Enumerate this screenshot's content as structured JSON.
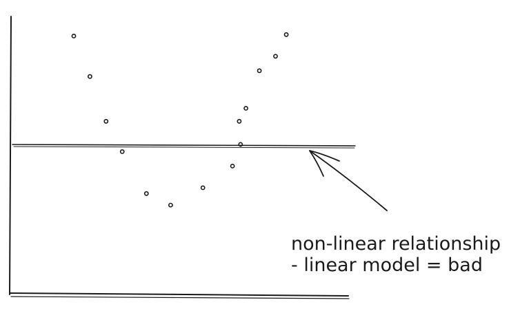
{
  "chart_data": {
    "type": "scatter",
    "title": "",
    "xlabel": "",
    "ylabel": "",
    "grid": false,
    "xlim": [
      0,
      10
    ],
    "ylim": [
      -4,
      4.5
    ],
    "series": [
      {
        "points": [
          {
            "x": 1.0,
            "y": 3.8
          },
          {
            "x": 1.6,
            "y": 2.4
          },
          {
            "x": 2.2,
            "y": 0.85
          },
          {
            "x": 2.8,
            "y": -0.2
          },
          {
            "x": 3.7,
            "y": -1.65
          },
          {
            "x": 4.6,
            "y": -2.05
          },
          {
            "x": 5.8,
            "y": -1.45
          },
          {
            "x": 6.9,
            "y": -0.7
          },
          {
            "x": 7.15,
            "y": 0.85
          },
          {
            "x": 7.4,
            "y": 1.3
          },
          {
            "x": 7.9,
            "y": 2.6
          },
          {
            "x": 8.5,
            "y": 3.1
          },
          {
            "x": 7.2,
            "y": 0.05
          },
          {
            "x": 8.9,
            "y": 3.85
          }
        ]
      }
    ],
    "fit_line": {
      "y": 0
    },
    "annotations": [
      {
        "line1": "non-linear relationship",
        "line2": "- linear model = bad"
      }
    ]
  }
}
